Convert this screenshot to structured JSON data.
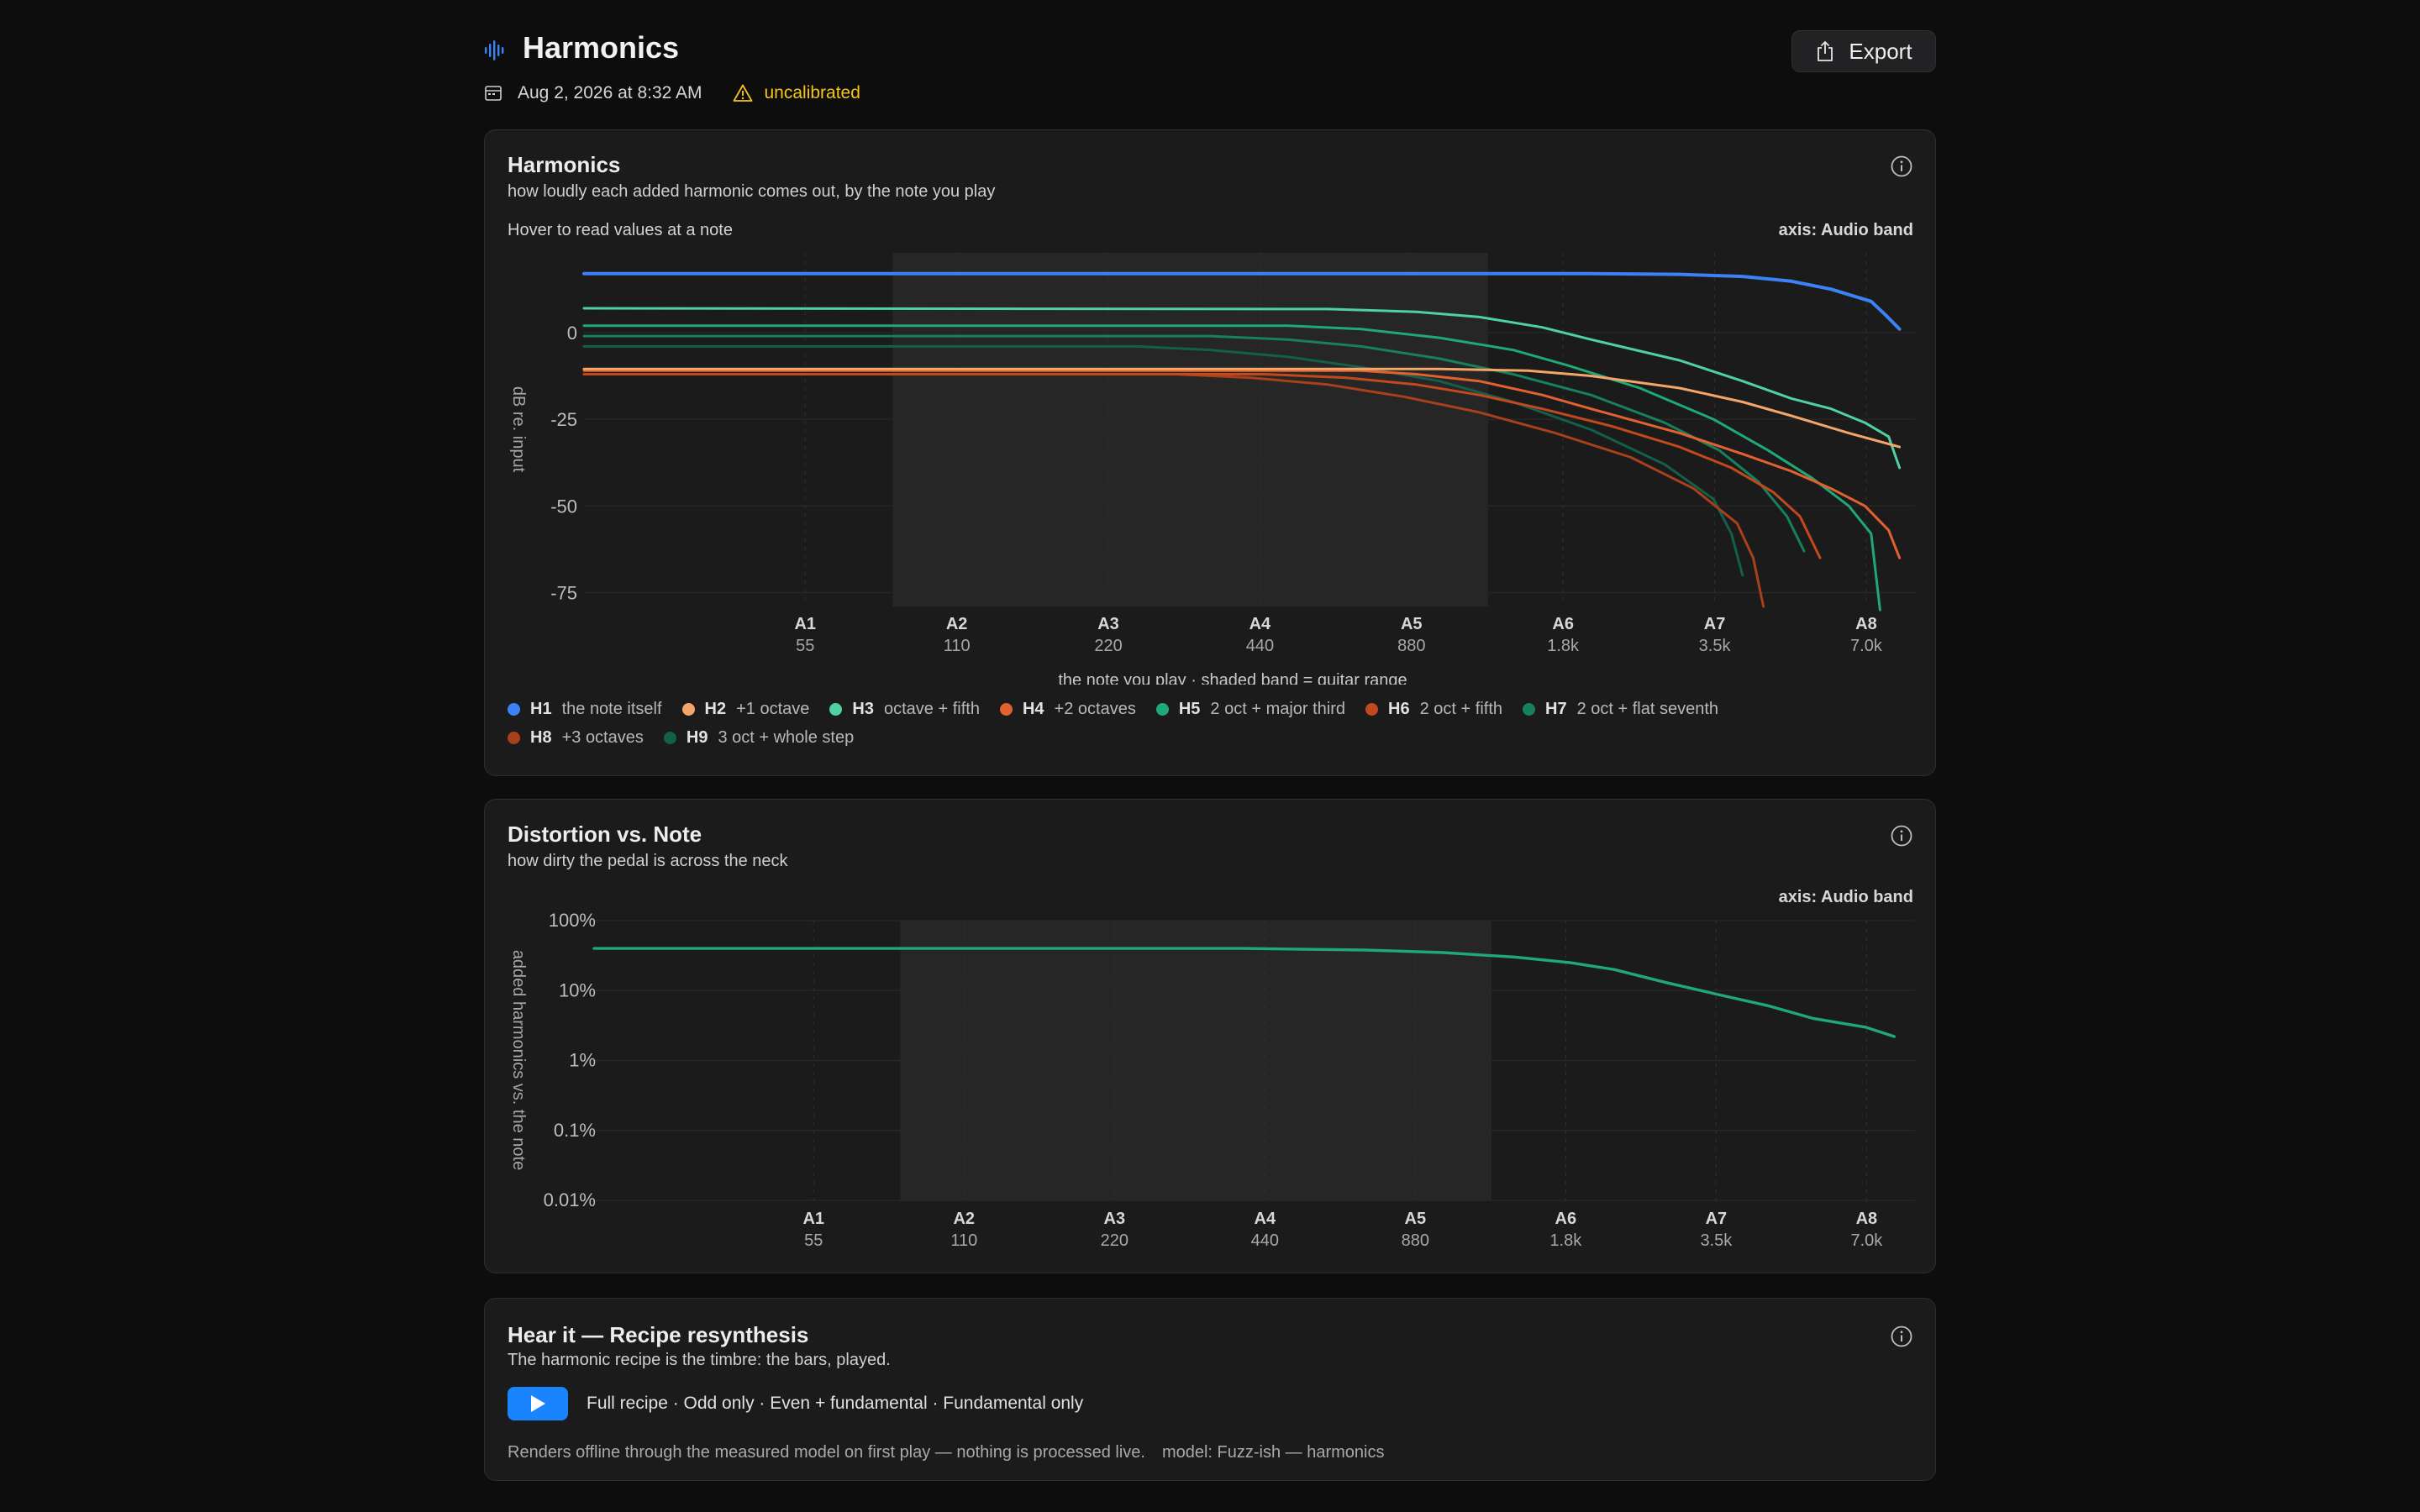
{
  "header": {
    "title": "Harmonics",
    "date": "Aug 2, 2026 at 8:32 AM",
    "warning": "uncalibrated",
    "export_label": "Export",
    "icons": {
      "app": "waveform-icon",
      "date": "calendar-icon",
      "warning": "warning-triangle-icon",
      "export": "share-icon"
    }
  },
  "harmonics_card": {
    "title": "Harmonics",
    "subtitle": "how loudly each added harmonic comes out, by the note you play",
    "hover_hint": "Hover to read values at a note",
    "axis_label": "axis: Audio band"
  },
  "distortion_card": {
    "title": "Distortion vs. Note",
    "subtitle": "how dirty the pedal is across the neck",
    "axis_label": "axis: Audio band"
  },
  "resynth_card": {
    "title": "Hear it — Recipe resynthesis",
    "subtitle": "The harmonic recipe is the timbre: the bars, played.",
    "modes": "Full recipe · Odd only · Even + fundamental · Fundamental only",
    "footnote": "Renders offline through the measured model on first play — nothing is processed live.",
    "model": "model: Fuzz-ish — harmonics"
  },
  "chart_data": [
    {
      "type": "line",
      "ylabel": "dB re. input",
      "xlabel": "the note you play  ·  shaded band = guitar range",
      "x_scale": "log",
      "x_range_hz": [
        20,
        8800
      ],
      "ylim": [
        -79,
        23
      ],
      "y_ticks": [
        0,
        -25,
        -50,
        -75
      ],
      "y_tick_labels": [
        "0",
        "-25",
        "-50",
        "-75"
      ],
      "x_ticks": [
        {
          "note": "A1",
          "freq": 55,
          "label": "55"
        },
        {
          "note": "A2",
          "freq": 110,
          "label": "110"
        },
        {
          "note": "A3",
          "freq": 220,
          "label": "220"
        },
        {
          "note": "A4",
          "freq": 440,
          "label": "440"
        },
        {
          "note": "A5",
          "freq": 880,
          "label": "880"
        },
        {
          "note": "A6",
          "freq": 1760,
          "label": "1.8k"
        },
        {
          "note": "A7",
          "freq": 3520,
          "label": "3.5k"
        },
        {
          "note": "A8",
          "freq": 7040,
          "label": "7.0k"
        }
      ],
      "shaded_band_hz": [
        82,
        1250
      ],
      "grid": true,
      "series": [
        {
          "name": "H1",
          "desc": "the note itself",
          "color": "#3b82f6",
          "points": [
            [
              20,
              17
            ],
            [
              1000,
              17
            ],
            [
              2000,
              17
            ],
            [
              3000,
              16.8
            ],
            [
              4000,
              16.2
            ],
            [
              5000,
              14.8
            ],
            [
              6000,
              12.5
            ],
            [
              7200,
              9
            ],
            [
              7700,
              5
            ],
            [
              8200,
              1
            ]
          ]
        },
        {
          "name": "H2",
          "desc": "+1 octave",
          "color": "#f4a56a",
          "points": [
            [
              20,
              -10.5
            ],
            [
              1000,
              -10.5
            ],
            [
              1500,
              -11
            ],
            [
              2000,
              -12.5
            ],
            [
              3000,
              -16
            ],
            [
              4000,
              -20
            ],
            [
              5000,
              -24
            ],
            [
              6500,
              -29
            ],
            [
              8200,
              -33
            ]
          ]
        },
        {
          "name": "H3",
          "desc": "octave + fifth",
          "color": "#4fd1a0",
          "points": [
            [
              20,
              7
            ],
            [
              600,
              6.8
            ],
            [
              900,
              6
            ],
            [
              1200,
              4.5
            ],
            [
              1600,
              1.5
            ],
            [
              2000,
              -2
            ],
            [
              3000,
              -8
            ],
            [
              4000,
              -14
            ],
            [
              5000,
              -19
            ],
            [
              6000,
              -22
            ],
            [
              7000,
              -26
            ],
            [
              7800,
              -30
            ],
            [
              8200,
              -39
            ]
          ]
        },
        {
          "name": "H4",
          "desc": "+2 octaves",
          "color": "#e2622f",
          "points": [
            [
              20,
              -11
            ],
            [
              700,
              -11
            ],
            [
              900,
              -12
            ],
            [
              1200,
              -14
            ],
            [
              1600,
              -18
            ],
            [
              2000,
              -22
            ],
            [
              3000,
              -29
            ],
            [
              4000,
              -35
            ],
            [
              5000,
              -40
            ],
            [
              6000,
              -45
            ],
            [
              7000,
              -50
            ],
            [
              7800,
              -57
            ],
            [
              8200,
              -65
            ]
          ]
        },
        {
          "name": "H5",
          "desc": "2 oct + major third",
          "color": "#1fa878",
          "points": [
            [
              20,
              2
            ],
            [
              500,
              2
            ],
            [
              700,
              1
            ],
            [
              1000,
              -1.5
            ],
            [
              1400,
              -5
            ],
            [
              1800,
              -9.5
            ],
            [
              2500,
              -16
            ],
            [
              3500,
              -25
            ],
            [
              4500,
              -34
            ],
            [
              5500,
              -42
            ],
            [
              6500,
              -50
            ],
            [
              7200,
              -58
            ],
            [
              7500,
              -80
            ]
          ]
        },
        {
          "name": "H6",
          "desc": "2 oct + fifth",
          "color": "#c2481e",
          "points": [
            [
              20,
              -12
            ],
            [
              450,
              -12
            ],
            [
              650,
              -13
            ],
            [
              900,
              -15
            ],
            [
              1200,
              -18
            ],
            [
              1600,
              -22
            ],
            [
              2200,
              -27
            ],
            [
              3000,
              -33
            ],
            [
              3800,
              -39
            ],
            [
              4600,
              -46
            ],
            [
              5200,
              -53
            ],
            [
              5700,
              -65
            ]
          ]
        },
        {
          "name": "H7",
          "desc": "2 oct + flat seventh",
          "color": "#17805c",
          "points": [
            [
              20,
              -1
            ],
            [
              350,
              -1
            ],
            [
              500,
              -2
            ],
            [
              700,
              -4
            ],
            [
              1000,
              -7.5
            ],
            [
              1400,
              -12
            ],
            [
              2000,
              -18
            ],
            [
              2800,
              -26
            ],
            [
              3600,
              -34
            ],
            [
              4300,
              -43
            ],
            [
              4900,
              -53
            ],
            [
              5300,
              -63
            ]
          ]
        },
        {
          "name": "H8",
          "desc": "+3 octaves",
          "color": "#a8401c",
          "points": [
            [
              20,
              -12
            ],
            [
              300,
              -12
            ],
            [
              420,
              -13
            ],
            [
              600,
              -15
            ],
            [
              850,
              -18.5
            ],
            [
              1200,
              -23
            ],
            [
              1700,
              -29
            ],
            [
              2400,
              -36
            ],
            [
              3200,
              -45
            ],
            [
              3900,
              -55
            ],
            [
              4200,
              -65
            ],
            [
              4400,
              -79
            ]
          ]
        },
        {
          "name": "H9",
          "desc": "3 oct + whole step",
          "color": "#13604a",
          "points": [
            [
              20,
              -4
            ],
            [
              250,
              -4
            ],
            [
              350,
              -5
            ],
            [
              500,
              -7
            ],
            [
              700,
              -10
            ],
            [
              1000,
              -14
            ],
            [
              1400,
              -20
            ],
            [
              2000,
              -28
            ],
            [
              2800,
              -38
            ],
            [
              3500,
              -48
            ],
            [
              3800,
              -58
            ],
            [
              4000,
              -70
            ]
          ]
        }
      ]
    },
    {
      "type": "line",
      "ylabel": "added harmonics vs. the note",
      "y_scale": "log",
      "ylim_percent": [
        0.01,
        100
      ],
      "y_tick_labels": [
        "100%",
        "10%",
        "1%",
        "0.1%",
        "0.01%"
      ],
      "x_scale": "log",
      "x_range_hz": [
        20,
        8800
      ],
      "x_ticks": [
        {
          "note": "A1",
          "freq": 55,
          "label": "55"
        },
        {
          "note": "A2",
          "freq": 110,
          "label": "110"
        },
        {
          "note": "A3",
          "freq": 220,
          "label": "220"
        },
        {
          "note": "A4",
          "freq": 440,
          "label": "440"
        },
        {
          "note": "A5",
          "freq": 880,
          "label": "880"
        },
        {
          "note": "A6",
          "freq": 1760,
          "label": "1.8k"
        },
        {
          "note": "A7",
          "freq": 3520,
          "label": "3.5k"
        },
        {
          "note": "A8",
          "freq": 7040,
          "label": "7.0k"
        }
      ],
      "shaded_band_hz": [
        82,
        1250
      ],
      "grid": true,
      "series": [
        {
          "color": "#1fa878",
          "points": [
            [
              20,
              40
            ],
            [
              400,
              40
            ],
            [
              700,
              38
            ],
            [
              1000,
              35
            ],
            [
              1400,
              30
            ],
            [
              1800,
              25
            ],
            [
              2200,
              20
            ],
            [
              2800,
              13
            ],
            [
              3500,
              9
            ],
            [
              4500,
              6
            ],
            [
              5500,
              4
            ],
            [
              7000,
              3
            ],
            [
              8000,
              2.2
            ]
          ]
        }
      ]
    }
  ]
}
